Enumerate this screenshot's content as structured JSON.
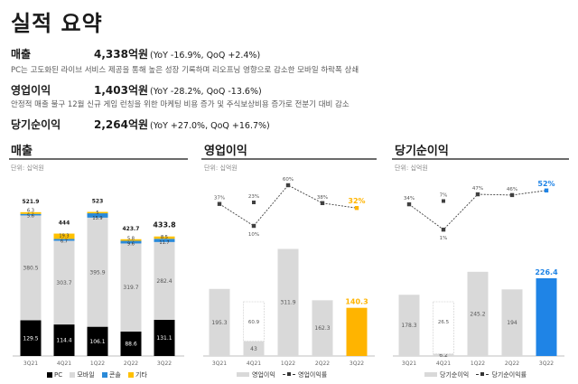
{
  "title": "실적 요약",
  "summary": {
    "revenue": {
      "label": "매출",
      "value": "4,338억원",
      "change": "(YoY -16.9%, QoQ +2.4%)",
      "desc": "PC는 고도화된 라이브 서비스 제공을 통해 높은 성장 기록하며 리오프닝 영향으로 감소한 모바일 하락폭 상쇄"
    },
    "op": {
      "label": "영업이익",
      "value": "1,403억원",
      "change": "(YoY -28.2%, QoQ -13.6%)",
      "desc": "안정적 매출 불구 12월 신규 게임 런칭을 위한 마케팅 비용 증가 및 주식보상비용 증가로 전분기 대비 감소"
    },
    "net": {
      "label": "당기순이익",
      "value": "2,264억원",
      "change": "(YoY +27.0%, QoQ +16.7%)"
    }
  },
  "panels": {
    "revenue": {
      "title": "매출",
      "unit": "단위: 십억원"
    },
    "op": {
      "title": "영업이익",
      "unit": "단위: 십억원"
    },
    "net": {
      "title": "당기순이익",
      "unit": "단위: 십억원"
    }
  },
  "colors": {
    "pc": "#000000",
    "mobile": "#d9d9d9",
    "console": "#2b8ad8",
    "other": "#ffc000",
    "bar": "#d9d9d9",
    "op_highlight": "#ffb400",
    "net_highlight": "#1f84e6",
    "line": "#404040"
  },
  "chart_data": [
    {
      "type": "bar",
      "stacked": true,
      "title": "매출",
      "unit": "단위: 십억원",
      "categories": [
        "3Q21",
        "4Q21",
        "1Q22",
        "2Q22",
        "3Q22"
      ],
      "series": [
        {
          "name": "PC",
          "values": [
            129.5,
            114.4,
            106.1,
            88.6,
            131.1
          ]
        },
        {
          "name": "모바일",
          "values": [
            380.5,
            303.7,
            395.9,
            319.7,
            282.4
          ]
        },
        {
          "name": "콘솔",
          "values": [
            5.6,
            6.7,
            15.9,
            9.6,
            11.7
          ]
        },
        {
          "name": "기타",
          "values": [
            6.3,
            19.3,
            5.0,
            5.8,
            8.5
          ]
        }
      ],
      "totals": [
        521.9,
        444.0,
        523.0,
        423.7,
        433.8
      ],
      "legend": [
        "PC",
        "모바일",
        "콘솔",
        "기타"
      ]
    },
    {
      "type": "bar+line",
      "title": "영업이익",
      "unit": "단위: 십억원",
      "categories": [
        "3Q21",
        "4Q21",
        "1Q22",
        "2Q22",
        "3Q22"
      ],
      "bars": {
        "name": "영업이익",
        "values": [
          195.3,
          43.0,
          311.9,
          162.3,
          140.3
        ]
      },
      "extra_labels": {
        "4Q21": "60.9"
      },
      "line": {
        "name": "영업이익률",
        "values": [
          37,
          10,
          60,
          38,
          32
        ],
        "labels": [
          "37%",
          "10%",
          "60%",
          "38%",
          "32%"
        ]
      },
      "extra_line_labels": {
        "4Q21": "23%"
      },
      "legend": [
        "영업이익",
        "영업이익률"
      ]
    },
    {
      "type": "bar+line",
      "title": "당기순이익",
      "unit": "단위: 십억원",
      "categories": [
        "3Q21",
        "4Q21",
        "1Q22",
        "2Q22",
        "3Q22"
      ],
      "bars": {
        "name": "당기순이익",
        "values": [
          178.3,
          6.2,
          245.2,
          194.0,
          226.4
        ]
      },
      "extra_labels": {
        "4Q21": "26.5"
      },
      "line": {
        "name": "당기순이익률",
        "values": [
          34,
          1,
          47,
          46,
          52
        ],
        "labels": [
          "34%",
          "1%",
          "47%",
          "46%",
          "52%"
        ]
      },
      "extra_line_labels": {
        "4Q21": "7%"
      },
      "legend": [
        "당기순이익",
        "당기순이익률"
      ]
    }
  ]
}
